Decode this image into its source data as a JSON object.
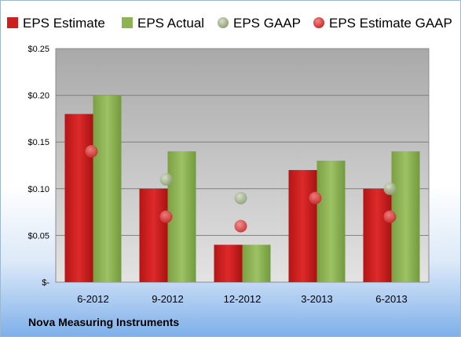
{
  "chart_data": {
    "type": "bar",
    "categories": [
      "6-2012",
      "9-2012",
      "12-2012",
      "3-2013",
      "6-2013"
    ],
    "series": [
      {
        "name": "EPS Estimate",
        "kind": "bar",
        "color": "#cc1f1f",
        "values": [
          0.18,
          0.1,
          0.04,
          0.12,
          0.1
        ]
      },
      {
        "name": "EPS Actual",
        "kind": "bar",
        "color": "#8db352",
        "values": [
          0.2,
          0.14,
          0.04,
          0.13,
          0.14
        ]
      },
      {
        "name": "EPS GAAP",
        "kind": "marker",
        "color": "#9fb08a",
        "values": [
          null,
          0.11,
          0.09,
          null,
          0.1
        ]
      },
      {
        "name": "EPS Estimate GAAP",
        "kind": "marker",
        "color": "#e04040",
        "values": [
          0.14,
          0.07,
          0.06,
          0.09,
          0.07
        ]
      }
    ],
    "yticks": [
      {
        "value": 0,
        "label": "$-"
      },
      {
        "value": 0.05,
        "label": "$0.05"
      },
      {
        "value": 0.1,
        "label": "$0.10"
      },
      {
        "value": 0.15,
        "label": "$0.15"
      },
      {
        "value": 0.2,
        "label": "$0.20"
      },
      {
        "value": 0.25,
        "label": "$0.25"
      }
    ],
    "ylim": [
      0,
      0.25
    ],
    "grid": true,
    "legend_position": "top",
    "footer": "Nova Measuring Instruments"
  }
}
